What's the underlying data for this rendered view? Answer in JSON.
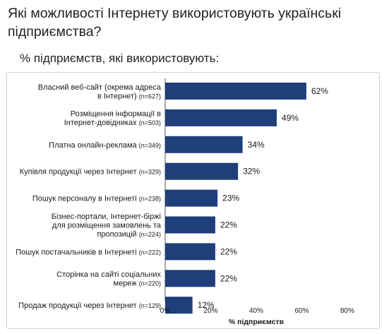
{
  "title": "Які можливості Інтернету використовують українські підприємства?",
  "subtitle": "% підприємств, які використовують:",
  "chart_data": {
    "type": "bar",
    "orientation": "horizontal",
    "categories": [
      {
        "lines": [
          "Власний веб-сайт (окрема адреса",
          "в Інтернет)"
        ],
        "n": "(n=627)"
      },
      {
        "lines": [
          "Розміщення інформації в",
          "Інтернет-довідниках"
        ],
        "n": "(n=503)"
      },
      {
        "lines": [
          "Платна онлайн-реклама"
        ],
        "n": "(n=349)"
      },
      {
        "lines": [
          "Купівля продукції через Інтернет"
        ],
        "n": "(n=329)"
      },
      {
        "lines": [
          "Пошук персоналу в Інтернеті"
        ],
        "n": "(n=238)"
      },
      {
        "lines": [
          "Бізнес-портали, Інтернет-біржі",
          "для розміщення замовлень та",
          "пропозицій"
        ],
        "n": "(n=224)"
      },
      {
        "lines": [
          "Пошук постачальників в Інтернеті"
        ],
        "n": "(n=222)"
      },
      {
        "lines": [
          "Сторінка на сайті соціальних",
          "мереж"
        ],
        "n": "(n=220)"
      },
      {
        "lines": [
          "Продаж продукції через Інтернет"
        ],
        "n": "(n=129)"
      }
    ],
    "values": [
      62,
      49,
      34,
      32,
      23,
      22,
      22,
      22,
      12
    ],
    "value_suffix": "%",
    "xlim": [
      0,
      80
    ],
    "xticks": [
      "0%",
      "20%",
      "40%",
      "60%",
      "80%"
    ],
    "xlabel": "% підприємств",
    "grid": false,
    "bar_color": "#1f3f7a"
  }
}
